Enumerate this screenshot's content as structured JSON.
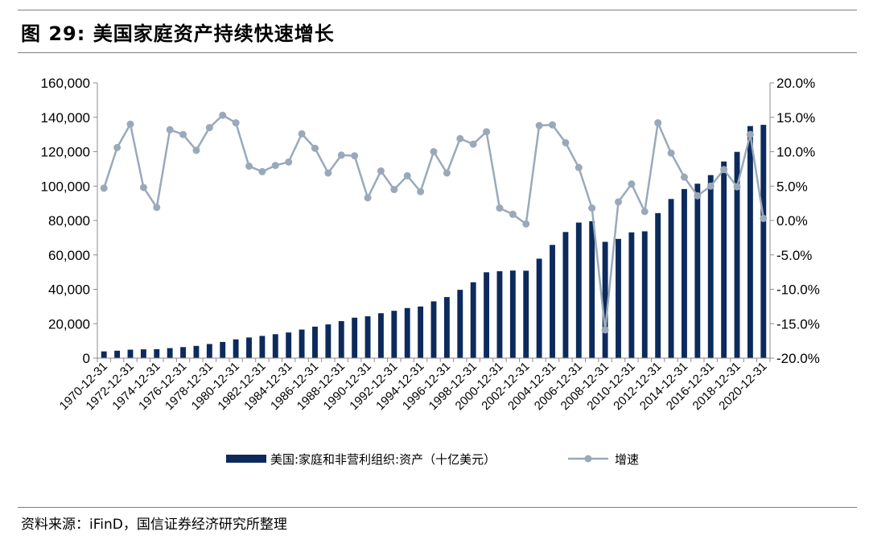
{
  "figure": {
    "title": "图 29:  美国家庭资产持续快速增长",
    "source": "资料来源：iFinD，国信证券经济研究所整理"
  },
  "chart_data": {
    "type": "bar+line",
    "x": [
      "1970-12-31",
      "1971-12-31",
      "1972-12-31",
      "1973-12-31",
      "1974-12-31",
      "1975-12-31",
      "1976-12-31",
      "1977-12-31",
      "1978-12-31",
      "1979-12-31",
      "1980-12-31",
      "1981-12-31",
      "1982-12-31",
      "1983-12-31",
      "1984-12-31",
      "1985-12-31",
      "1986-12-31",
      "1987-12-31",
      "1988-12-31",
      "1989-12-31",
      "1990-12-31",
      "1991-12-31",
      "1992-12-31",
      "1993-12-31",
      "1994-12-31",
      "1995-12-31",
      "1996-12-31",
      "1997-12-31",
      "1998-12-31",
      "1999-12-31",
      "2000-12-31",
      "2001-12-31",
      "2002-12-31",
      "2003-12-31",
      "2004-12-31",
      "2005-12-31",
      "2006-12-31",
      "2007-12-31",
      "2008-12-31",
      "2009-12-31",
      "2010-12-31",
      "2011-12-31",
      "2012-12-31",
      "2013-12-31",
      "2014-12-31",
      "2015-12-31",
      "2016-12-31",
      "2017-12-31",
      "2018-12-31",
      "2019-12-31",
      "2020-12-31"
    ],
    "x_tick_labels": [
      "1970-12-31",
      "1972-12-31",
      "1974-12-31",
      "1976-12-31",
      "1978-12-31",
      "1980-12-31",
      "1982-12-31",
      "1984-12-31",
      "1986-12-31",
      "1988-12-31",
      "1990-12-31",
      "1992-12-31",
      "1994-12-31",
      "1996-12-31",
      "1998-12-31",
      "2000-12-31",
      "2002-12-31",
      "2004-12-31",
      "2006-12-31",
      "2008-12-31",
      "2010-12-31",
      "2012-12-31",
      "2014-12-31",
      "2016-12-31",
      "2018-12-31",
      "2020-12-31"
    ],
    "series": [
      {
        "name": "美国:家庭和非营利组织:资产（十亿美元）",
        "type": "bar",
        "axis": "left",
        "color": "#0d2a5c",
        "values": [
          3900,
          4300,
          4900,
          5100,
          5200,
          5800,
          6400,
          7100,
          8200,
          9400,
          10900,
          12000,
          12900,
          13900,
          14900,
          16600,
          18300,
          19600,
          21500,
          23500,
          24300,
          26100,
          27500,
          29100,
          30000,
          33000,
          35500,
          39700,
          44100,
          49900,
          50500,
          50900,
          50800,
          57800,
          65800,
          73300,
          78800,
          79600,
          67600,
          69300,
          73100,
          73700,
          84300,
          92500,
          98300,
          101400,
          106400,
          114300,
          119900,
          134900,
          135600
        ]
      },
      {
        "name": "增速",
        "type": "line",
        "axis": "right",
        "color": "#9aa9ba",
        "values": [
          4.7,
          10.6,
          14.0,
          4.8,
          1.9,
          13.2,
          12.5,
          10.2,
          13.5,
          15.3,
          14.2,
          7.9,
          7.1,
          8.0,
          8.5,
          12.6,
          10.5,
          6.9,
          9.5,
          9.4,
          3.3,
          7.2,
          4.5,
          6.5,
          4.2,
          10.0,
          6.9,
          11.9,
          11.1,
          12.9,
          1.8,
          0.9,
          -0.5,
          13.8,
          13.9,
          11.3,
          7.7,
          1.8,
          -15.9,
          2.7,
          5.3,
          1.3,
          14.2,
          9.8,
          6.3,
          3.6,
          5.0,
          7.4,
          4.9,
          12.5,
          0.3
        ]
      }
    ],
    "y_left": {
      "ylim": [
        0,
        160000
      ],
      "ticks": [
        "0",
        "20,000",
        "40,000",
        "60,000",
        "80,000",
        "100,000",
        "120,000",
        "140,000",
        "160,000"
      ]
    },
    "y_right": {
      "ylim": [
        -20,
        20
      ],
      "ticks": [
        "-20.0%",
        "-15.0%",
        "-10.0%",
        "-5.0%",
        "0.0%",
        "5.0%",
        "10.0%",
        "15.0%",
        "20.0%"
      ]
    },
    "grid": false,
    "legend": "bottom-center"
  }
}
